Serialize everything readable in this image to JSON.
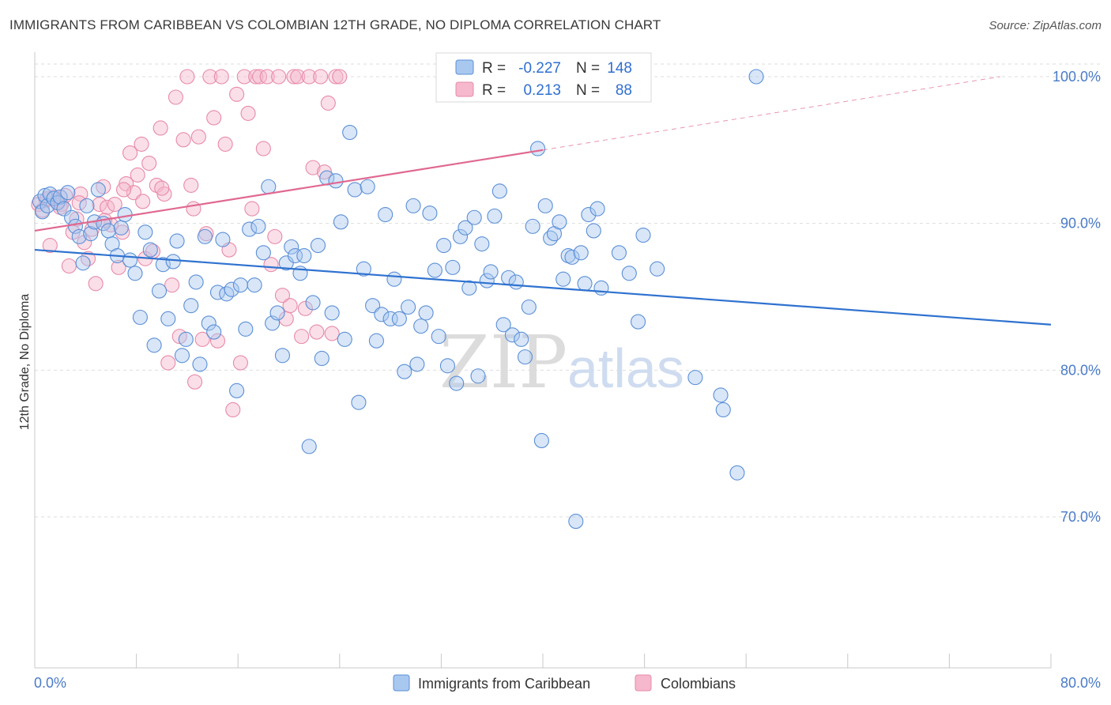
{
  "title": "IMMIGRANTS FROM CARIBBEAN VS COLOMBIAN 12TH GRADE, NO DIPLOMA CORRELATION CHART",
  "source": "Source: ZipAtlas.com",
  "watermark": {
    "part1": "ZIP",
    "part2": "atlas"
  },
  "colors": {
    "blue_fill": "#a9c8f0",
    "blue_stroke": "#5b8fd6",
    "blue_line": "#2f72cf",
    "pink_fill": "#f5b8cc",
    "pink_stroke": "#e88aa8",
    "pink_line": "#e06890",
    "axis_text": "#4a7bc8",
    "grid": "#dddddd"
  },
  "legend": {
    "rows": [
      {
        "r_label": "R =",
        "r_value": "-0.227",
        "n_label": "N =",
        "n_value": "148"
      },
      {
        "r_label": "R =",
        "r_value": "0.213",
        "n_label": "N =",
        "n_value": "88"
      }
    ]
  },
  "bottom_legend": [
    "Immigrants from Caribbean",
    "Colombians"
  ],
  "chart_data": {
    "type": "scatter",
    "ylabel": "12th Grade, No Diploma",
    "xlabel": "",
    "xlim": [
      0,
      80
    ],
    "ylim": [
      60,
      102
    ],
    "x_tick_labels": [
      "0.0%",
      "80.0%"
    ],
    "y_ticks": [
      70,
      80,
      90,
      100
    ],
    "y_tick_labels": [
      "70.0%",
      "80.0%",
      "90.0%",
      "100.0%"
    ],
    "grid": true,
    "series": [
      {
        "name": "Immigrants from Caribbean",
        "r": -0.227,
        "n": 148,
        "trend": {
          "x0": 0,
          "y0": 88.2,
          "x1": 80,
          "y1": 83.1
        },
        "points": [
          [
            0.4,
            91.5
          ],
          [
            0.6,
            90.8
          ],
          [
            0.8,
            91.9
          ],
          [
            1.0,
            91.2
          ],
          [
            1.2,
            92.0
          ],
          [
            1.5,
            91.7
          ],
          [
            1.8,
            91.4
          ],
          [
            2.0,
            91.8
          ],
          [
            2.3,
            91.0
          ],
          [
            2.6,
            92.1
          ],
          [
            2.9,
            90.4
          ],
          [
            3.2,
            89.8
          ],
          [
            3.5,
            89.1
          ],
          [
            3.8,
            87.3
          ],
          [
            4.1,
            91.2
          ],
          [
            4.4,
            89.3
          ],
          [
            4.7,
            90.1
          ],
          [
            5.0,
            92.3
          ],
          [
            5.4,
            90.0
          ],
          [
            5.8,
            89.5
          ],
          [
            6.1,
            88.6
          ],
          [
            6.5,
            87.8
          ],
          [
            6.8,
            89.7
          ],
          [
            7.1,
            90.6
          ],
          [
            7.5,
            87.5
          ],
          [
            7.9,
            86.6
          ],
          [
            8.3,
            83.6
          ],
          [
            8.7,
            89.4
          ],
          [
            9.1,
            88.2
          ],
          [
            9.4,
            81.7
          ],
          [
            9.8,
            85.4
          ],
          [
            10.1,
            87.2
          ],
          [
            10.5,
            83.5
          ],
          [
            10.9,
            87.4
          ],
          [
            11.2,
            88.8
          ],
          [
            11.6,
            81.0
          ],
          [
            11.9,
            82.1
          ],
          [
            12.3,
            84.4
          ],
          [
            12.7,
            86.0
          ],
          [
            13.0,
            80.4
          ],
          [
            13.4,
            89.1
          ],
          [
            13.7,
            83.2
          ],
          [
            14.1,
            82.6
          ],
          [
            14.4,
            85.3
          ],
          [
            14.8,
            88.9
          ],
          [
            15.1,
            85.2
          ],
          [
            15.5,
            85.5
          ],
          [
            15.9,
            78.6
          ],
          [
            16.2,
            85.8
          ],
          [
            16.6,
            82.8
          ],
          [
            16.9,
            89.6
          ],
          [
            17.3,
            85.8
          ],
          [
            17.6,
            89.8
          ],
          [
            18.0,
            88.0
          ],
          [
            18.4,
            92.5
          ],
          [
            18.7,
            83.2
          ],
          [
            19.1,
            83.9
          ],
          [
            19.5,
            81.0
          ],
          [
            19.8,
            87.3
          ],
          [
            20.2,
            88.4
          ],
          [
            20.5,
            87.8
          ],
          [
            20.9,
            86.6
          ],
          [
            21.2,
            87.8
          ],
          [
            21.6,
            74.8
          ],
          [
            21.9,
            84.6
          ],
          [
            22.3,
            88.5
          ],
          [
            22.6,
            80.8
          ],
          [
            23.0,
            93.1
          ],
          [
            23.4,
            83.9
          ],
          [
            23.7,
            92.9
          ],
          [
            24.1,
            90.1
          ],
          [
            24.4,
            82.1
          ],
          [
            24.8,
            96.2
          ],
          [
            25.2,
            92.3
          ],
          [
            25.5,
            77.8
          ],
          [
            25.9,
            86.9
          ],
          [
            26.2,
            92.5
          ],
          [
            26.6,
            84.4
          ],
          [
            26.9,
            82.0
          ],
          [
            27.3,
            83.8
          ],
          [
            27.6,
            90.6
          ],
          [
            28.0,
            83.5
          ],
          [
            28.3,
            86.2
          ],
          [
            28.7,
            83.5
          ],
          [
            29.1,
            79.9
          ],
          [
            29.4,
            84.3
          ],
          [
            29.8,
            91.2
          ],
          [
            30.1,
            80.4
          ],
          [
            30.4,
            83.0
          ],
          [
            30.8,
            83.9
          ],
          [
            31.1,
            90.7
          ],
          [
            31.5,
            86.8
          ],
          [
            31.8,
            82.3
          ],
          [
            32.2,
            88.5
          ],
          [
            32.5,
            80.3
          ],
          [
            32.9,
            87.0
          ],
          [
            33.2,
            79.1
          ],
          [
            33.5,
            89.1
          ],
          [
            33.9,
            89.7
          ],
          [
            34.2,
            85.6
          ],
          [
            34.6,
            90.4
          ],
          [
            34.9,
            79.6
          ],
          [
            35.2,
            88.6
          ],
          [
            35.6,
            86.1
          ],
          [
            35.9,
            86.7
          ],
          [
            36.2,
            90.5
          ],
          [
            36.6,
            92.2
          ],
          [
            36.9,
            83.1
          ],
          [
            37.3,
            86.3
          ],
          [
            37.6,
            82.4
          ],
          [
            37.9,
            86.0
          ],
          [
            38.3,
            82.1
          ],
          [
            38.6,
            80.9
          ],
          [
            38.9,
            84.3
          ],
          [
            39.2,
            89.8
          ],
          [
            39.6,
            95.1
          ],
          [
            39.9,
            75.2
          ],
          [
            40.2,
            91.2
          ],
          [
            40.6,
            89.0
          ],
          [
            40.9,
            89.3
          ],
          [
            41.3,
            90.1
          ],
          [
            41.6,
            86.2
          ],
          [
            42.0,
            87.8
          ],
          [
            42.3,
            87.7
          ],
          [
            42.6,
            69.7
          ],
          [
            43.0,
            88.0
          ],
          [
            43.3,
            85.9
          ],
          [
            43.6,
            90.6
          ],
          [
            44.0,
            89.5
          ],
          [
            44.3,
            91.0
          ],
          [
            44.6,
            85.6
          ],
          [
            45.0,
            100.0
          ],
          [
            46.0,
            88.0
          ],
          [
            46.8,
            86.6
          ],
          [
            47.5,
            83.3
          ],
          [
            47.9,
            89.2
          ],
          [
            49.0,
            86.9
          ],
          [
            52.0,
            79.5
          ],
          [
            54.0,
            78.3
          ],
          [
            54.2,
            77.3
          ],
          [
            55.3,
            73.0
          ],
          [
            56.8,
            100.0
          ]
        ]
      },
      {
        "name": "Colombians",
        "r": 0.213,
        "n": 88,
        "trend": {
          "x0": 0,
          "y0": 89.5,
          "x1": 40,
          "y1": 95.0
        },
        "trend_ext": {
          "x0": 40,
          "y0": 95.0,
          "x1": 76,
          "y1": 100.0
        },
        "points": [
          [
            0.3,
            91.3
          ],
          [
            0.6,
            90.9
          ],
          [
            0.9,
            91.6
          ],
          [
            1.2,
            88.5
          ],
          [
            1.5,
            91.8
          ],
          [
            1.8,
            91.5
          ],
          [
            2.1,
            91.3
          ],
          [
            2.4,
            91.9
          ],
          [
            2.7,
            87.1
          ],
          [
            3.0,
            89.4
          ],
          [
            3.3,
            90.3
          ],
          [
            3.6,
            92.0
          ],
          [
            3.9,
            88.7
          ],
          [
            4.2,
            87.6
          ],
          [
            4.5,
            89.6
          ],
          [
            4.8,
            85.9
          ],
          [
            5.1,
            91.3
          ],
          [
            5.4,
            92.5
          ],
          [
            5.7,
            91.1
          ],
          [
            6.0,
            89.9
          ],
          [
            6.3,
            91.3
          ],
          [
            6.6,
            87.0
          ],
          [
            6.9,
            89.4
          ],
          [
            7.2,
            92.7
          ],
          [
            7.5,
            94.8
          ],
          [
            7.8,
            92.1
          ],
          [
            8.1,
            93.3
          ],
          [
            8.4,
            95.4
          ],
          [
            8.7,
            87.6
          ],
          [
            9.0,
            94.1
          ],
          [
            9.3,
            88.1
          ],
          [
            9.6,
            92.6
          ],
          [
            9.9,
            96.5
          ],
          [
            10.2,
            92.0
          ],
          [
            10.5,
            80.5
          ],
          [
            10.8,
            85.8
          ],
          [
            11.1,
            98.6
          ],
          [
            11.4,
            82.3
          ],
          [
            11.7,
            95.7
          ],
          [
            12.0,
            100.0
          ],
          [
            12.3,
            92.6
          ],
          [
            12.6,
            79.2
          ],
          [
            12.9,
            95.9
          ],
          [
            13.2,
            82.1
          ],
          [
            13.5,
            89.3
          ],
          [
            13.8,
            100.0
          ],
          [
            14.1,
            97.2
          ],
          [
            14.4,
            82.0
          ],
          [
            14.7,
            100.0
          ],
          [
            15.0,
            95.4
          ],
          [
            15.3,
            88.2
          ],
          [
            15.6,
            77.3
          ],
          [
            15.9,
            98.8
          ],
          [
            16.2,
            80.5
          ],
          [
            16.5,
            100.0
          ],
          [
            16.8,
            97.5
          ],
          [
            17.1,
            91.0
          ],
          [
            17.4,
            100.0
          ],
          [
            17.7,
            100.0
          ],
          [
            18.0,
            95.1
          ],
          [
            18.3,
            100.0
          ],
          [
            18.6,
            87.2
          ],
          [
            18.9,
            89.1
          ],
          [
            19.2,
            100.0
          ],
          [
            19.5,
            85.1
          ],
          [
            19.8,
            83.5
          ],
          [
            20.1,
            84.4
          ],
          [
            20.4,
            100.0
          ],
          [
            20.7,
            100.0
          ],
          [
            21.0,
            82.3
          ],
          [
            21.3,
            84.2
          ],
          [
            21.6,
            100.0
          ],
          [
            21.9,
            93.8
          ],
          [
            22.2,
            82.6
          ],
          [
            22.5,
            100.0
          ],
          [
            22.8,
            93.5
          ],
          [
            23.1,
            98.2
          ],
          [
            23.4,
            82.5
          ],
          [
            23.7,
            100.0
          ],
          [
            24.0,
            100.0
          ],
          [
            1.0,
            91.7
          ],
          [
            2.0,
            91.1
          ],
          [
            3.5,
            91.4
          ],
          [
            5.5,
            90.2
          ],
          [
            7.0,
            92.3
          ],
          [
            8.5,
            91.5
          ],
          [
            10.0,
            92.4
          ],
          [
            12.5,
            91.0
          ]
        ]
      }
    ]
  }
}
